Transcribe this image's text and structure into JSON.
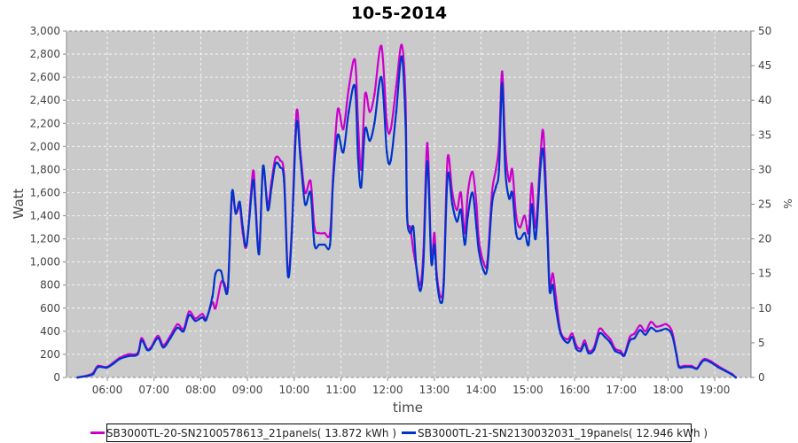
{
  "chart_data": {
    "type": "line",
    "title": "10-5-2014",
    "xlabel": "time",
    "ylabel": "Watt",
    "y2label": "%",
    "ylim": [
      0,
      3000
    ],
    "y2lim": [
      0,
      50
    ],
    "xlim": [
      "05:00",
      "19:45"
    ],
    "grid": true,
    "legend_position": "bottom",
    "x_ticks": [
      "06:00",
      "07:00",
      "08:00",
      "09:00",
      "10:00",
      "11:00",
      "12:00",
      "13:00",
      "14:00",
      "15:00",
      "16:00",
      "17:00",
      "18:00",
      "19:00"
    ],
    "y_ticks": [
      "0",
      "200",
      "400",
      "600",
      "800",
      "1,000",
      "1,200",
      "1,400",
      "1,600",
      "1,800",
      "2,000",
      "2,200",
      "2,400",
      "2,600",
      "2,800",
      "3,000"
    ],
    "y2_ticks": [
      "0",
      "5",
      "10",
      "15",
      "20",
      "25",
      "30",
      "35",
      "40",
      "45",
      "50"
    ],
    "x": [
      "05:22",
      "05:36",
      "05:42",
      "05:48",
      "05:59",
      "06:08",
      "06:16",
      "06:27",
      "06:39",
      "06:44",
      "06:51",
      "06:56",
      "07:05",
      "07:12",
      "07:21",
      "07:30",
      "07:38",
      "07:45",
      "07:53",
      "08:02",
      "08:07",
      "08:15",
      "08:19",
      "08:26",
      "08:30",
      "08:35",
      "08:40",
      "08:45",
      "08:50",
      "08:54",
      "08:59",
      "09:07",
      "09:10",
      "09:15",
      "09:20",
      "09:26",
      "09:31",
      "09:36",
      "09:42",
      "09:47",
      "09:52",
      "09:57",
      "10:03",
      "10:08",
      "10:14",
      "10:21",
      "10:26",
      "10:32",
      "10:39",
      "10:46",
      "10:50",
      "10:56",
      "11:03",
      "11:10",
      "11:18",
      "11:22",
      "11:26",
      "11:31",
      "11:37",
      "11:43",
      "11:52",
      "11:59",
      "12:04",
      "12:11",
      "12:18",
      "12:23",
      "12:25",
      "12:29",
      "12:33",
      "12:37",
      "12:42",
      "12:46",
      "12:51",
      "12:56",
      "13:00",
      "13:03",
      "13:08",
      "13:12",
      "13:17",
      "13:23",
      "13:29",
      "13:34",
      "13:39",
      "13:43",
      "13:49",
      "13:54",
      "13:57",
      "14:03",
      "14:08",
      "14:14",
      "14:19",
      "14:23",
      "14:27",
      "14:31",
      "14:36",
      "14:40",
      "14:45",
      "14:50",
      "14:56",
      "15:01",
      "15:05",
      "15:10",
      "15:16",
      "15:20",
      "15:25",
      "15:28",
      "15:32",
      "15:36",
      "15:42",
      "15:51",
      "15:57",
      "16:02",
      "16:08",
      "16:13",
      "16:18",
      "16:25",
      "16:32",
      "16:39",
      "16:46",
      "16:52",
      "16:59",
      "17:04",
      "17:11",
      "17:17",
      "17:24",
      "17:31",
      "17:38",
      "17:45",
      "17:52",
      "17:58",
      "18:05",
      "18:11",
      "18:14",
      "18:21",
      "18:30",
      "18:37",
      "18:42",
      "18:47",
      "18:55",
      "19:04",
      "19:14",
      "19:22",
      "19:27"
    ],
    "series": [
      {
        "name": "SB3000TL-20-SN2100578613_21panels( 13.872 kWh )",
        "color": "#cc00cc",
        "values": [
          0,
          20,
          40,
          100,
          90,
          130,
          170,
          200,
          210,
          340,
          250,
          260,
          360,
          280,
          360,
          460,
          420,
          570,
          510,
          550,
          510,
          650,
          600,
          820,
          820,
          800,
          1550,
          1420,
          1480,
          1250,
          1150,
          1780,
          1550,
          1100,
          1800,
          1500,
          1700,
          1900,
          1880,
          1750,
          900,
          1300,
          2300,
          1950,
          1600,
          1700,
          1300,
          1250,
          1250,
          1250,
          1750,
          2320,
          2150,
          2500,
          2750,
          2200,
          1800,
          2450,
          2300,
          2450,
          2870,
          2200,
          2150,
          2520,
          2880,
          2400,
          1400,
          1300,
          1100,
          950,
          800,
          1100,
          2030,
          1050,
          1250,
          900,
          700,
          850,
          1900,
          1600,
          1450,
          1600,
          1250,
          1600,
          1780,
          1500,
          1200,
          1000,
          1000,
          1600,
          1800,
          2020,
          2650,
          2000,
          1700,
          1800,
          1400,
          1300,
          1400,
          1250,
          1680,
          1300,
          1900,
          2120,
          1350,
          800,
          900,
          700,
          400,
          330,
          380,
          280,
          250,
          320,
          230,
          260,
          420,
          380,
          330,
          250,
          230,
          200,
          350,
          380,
          450,
          400,
          480,
          440,
          450,
          460,
          400,
          200,
          100,
          100,
          100,
          80,
          130,
          160,
          140,
          100,
          60,
          30,
          0
        ]
      },
      {
        "name": "SB3000TL-21-SN2130032031_19panels( 12.946 kWh )",
        "color": "#0033cc",
        "values": [
          0,
          15,
          30,
          90,
          85,
          120,
          160,
          185,
          200,
          320,
          240,
          250,
          340,
          260,
          340,
          430,
          400,
          540,
          490,
          520,
          500,
          700,
          900,
          920,
          800,
          780,
          1600,
          1420,
          1520,
          1300,
          1150,
          1700,
          1500,
          1070,
          1830,
          1450,
          1650,
          1850,
          1820,
          1700,
          880,
          1250,
          2200,
          1900,
          1500,
          1600,
          1150,
          1150,
          1150,
          1150,
          1700,
          2100,
          1950,
          2300,
          2520,
          1900,
          1650,
          2150,
          2050,
          2200,
          2600,
          1950,
          1880,
          2300,
          2780,
          2200,
          1400,
          1250,
          1300,
          950,
          750,
          1000,
          1870,
          1000,
          1150,
          850,
          650,
          800,
          1750,
          1500,
          1350,
          1450,
          1150,
          1400,
          1600,
          1300,
          1100,
          930,
          950,
          1500,
          1650,
          1800,
          2550,
          1800,
          1550,
          1600,
          1250,
          1200,
          1250,
          1150,
          1500,
          1200,
          1800,
          1950,
          1250,
          750,
          800,
          600,
          380,
          300,
          350,
          250,
          230,
          290,
          210,
          240,
          380,
          350,
          300,
          230,
          210,
          190,
          320,
          340,
          410,
          370,
          430,
          400,
          410,
          420,
          370,
          190,
          90,
          90,
          90,
          75,
          120,
          150,
          130,
          90,
          55,
          25,
          0
        ]
      }
    ]
  }
}
